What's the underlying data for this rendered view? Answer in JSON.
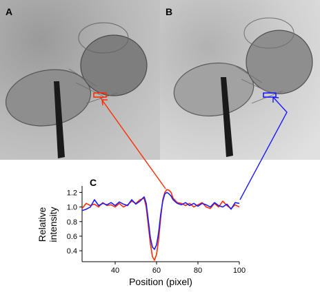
{
  "panels": {
    "a_label": "A",
    "b_label": "B",
    "c_label": "C"
  },
  "colors": {
    "red": "#ff2a00",
    "blue": "#1a1aff"
  },
  "chart_data": {
    "type": "line",
    "xlabel": "Position (pixel)",
    "ylabel_line1": "Relative",
    "ylabel_line2": "intensity",
    "xlim": [
      24,
      100
    ],
    "ylim": [
      0.25,
      1.27
    ],
    "xticks": [
      40,
      60,
      80,
      100
    ],
    "yticks": [
      0.4,
      0.6,
      0.8,
      1.0,
      1.2
    ],
    "ytick_labels": [
      "0.4",
      "0.6",
      "0.8",
      "1.0",
      "1.2"
    ],
    "grid": false,
    "series": [
      {
        "color": "#ff2a00",
        "x": [
          24,
          26,
          28,
          30,
          32,
          34,
          36,
          38,
          40,
          42,
          44,
          46,
          48,
          50,
          52,
          54,
          55,
          56,
          57,
          58,
          59,
          60,
          61,
          62,
          63,
          64,
          65,
          66,
          67,
          68,
          70,
          72,
          74,
          76,
          78,
          80,
          82,
          84,
          86,
          88,
          90,
          92,
          94,
          96,
          98,
          100
        ],
        "y": [
          0.98,
          1.05,
          1.02,
          1.04,
          1.0,
          1.06,
          1.02,
          1.03,
          1.0,
          1.05,
          1.0,
          1.03,
          1.08,
          1.05,
          1.1,
          1.12,
          1.0,
          0.75,
          0.5,
          0.32,
          0.27,
          0.35,
          0.55,
          0.85,
          1.1,
          1.2,
          1.24,
          1.23,
          1.2,
          1.12,
          1.06,
          1.05,
          1.02,
          1.05,
          1.0,
          1.03,
          1.06,
          1.0,
          0.98,
          1.05,
          1.0,
          1.08,
          1.02,
          0.98,
          1.03,
          1.0
        ]
      },
      {
        "color": "#1a1aff",
        "x": [
          24,
          26,
          28,
          30,
          32,
          34,
          36,
          38,
          40,
          42,
          44,
          46,
          48,
          50,
          52,
          54,
          55,
          56,
          57,
          58,
          59,
          60,
          61,
          62,
          63,
          64,
          65,
          66,
          67,
          68,
          70,
          72,
          74,
          76,
          78,
          80,
          82,
          84,
          86,
          88,
          90,
          92,
          94,
          96,
          98,
          100
        ],
        "y": [
          0.95,
          0.97,
          1.0,
          1.1,
          1.02,
          1.05,
          1.03,
          1.06,
          1.02,
          1.07,
          1.04,
          1.02,
          1.1,
          1.04,
          1.08,
          1.14,
          1.05,
          0.82,
          0.58,
          0.45,
          0.42,
          0.48,
          0.65,
          0.9,
          1.08,
          1.18,
          1.2,
          1.18,
          1.15,
          1.1,
          1.05,
          1.03,
          1.06,
          1.02,
          1.05,
          1.01,
          1.05,
          1.03,
          1.0,
          1.06,
          1.02,
          1.0,
          1.04,
          0.97,
          1.06,
          1.05
        ]
      }
    ]
  }
}
